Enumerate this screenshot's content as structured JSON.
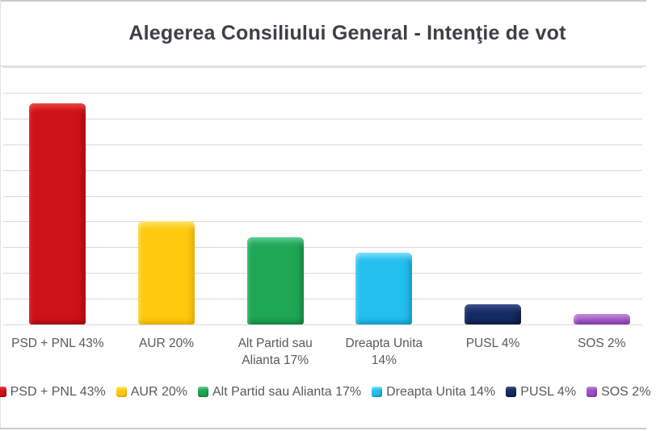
{
  "title": "Alegerea Consiliului General - Intenţie de vot",
  "chart_data": {
    "type": "bar",
    "title": "Alegerea Consiliului General - Intenţie de vot",
    "categories": [
      "PSD + PNL 43%",
      "AUR 20%",
      "Alt Partid sau Alianta 17%",
      "Dreapta Unita 14%",
      "PUSL 4%",
      "SOS 2%"
    ],
    "values": [
      43,
      20,
      17,
      14,
      4,
      2
    ],
    "unit": "%",
    "xlabel": "",
    "ylabel": "",
    "ylim": [
      0,
      50
    ],
    "gridline_step": 5,
    "grid": true,
    "y_axis_labels_visible": false,
    "legend_position": "bottom",
    "bars": [
      {
        "label": "PSD + PNL 43%",
        "value": 43,
        "color": "#CE1219",
        "highlight": "#F1504E",
        "shadow": "#8E070D"
      },
      {
        "label": "AUR 20%",
        "value": 20,
        "color": "#FFC90E",
        "highlight": "#FFEC82",
        "shadow": "#D59E00"
      },
      {
        "label": "Alt Partid sau Alianta 17%",
        "value": 17,
        "color": "#1FA755",
        "highlight": "#6BD49B",
        "shadow": "#107138"
      },
      {
        "label": "Dreapta Unita 14%",
        "value": 14,
        "color": "#23BFEE",
        "highlight": "#90E5FB",
        "shadow": "#0D85AE"
      },
      {
        "label": "PUSL 4%",
        "value": 4,
        "color": "#152C63",
        "highlight": "#46598F",
        "shadow": "#081430"
      },
      {
        "label": "SOS 2%",
        "value": 2,
        "color": "#9D50C3",
        "highlight": "#C795DF",
        "shadow": "#6C3494"
      }
    ]
  },
  "legend": {
    "items": [
      "PSD + PNL 43%",
      "AUR 20%",
      "Alt Partid sau Alianta 17%",
      "Dreapta Unita 14%",
      "PUSL 4%",
      "SOS 2%"
    ]
  },
  "colors": {
    "title_text": "#3F3F44",
    "label_text": "#595959",
    "gridline": "#D9D9D9",
    "divider": "#E3E3E3",
    "frame_border": "#CBCBCB",
    "background": "#FFFFFF"
  }
}
